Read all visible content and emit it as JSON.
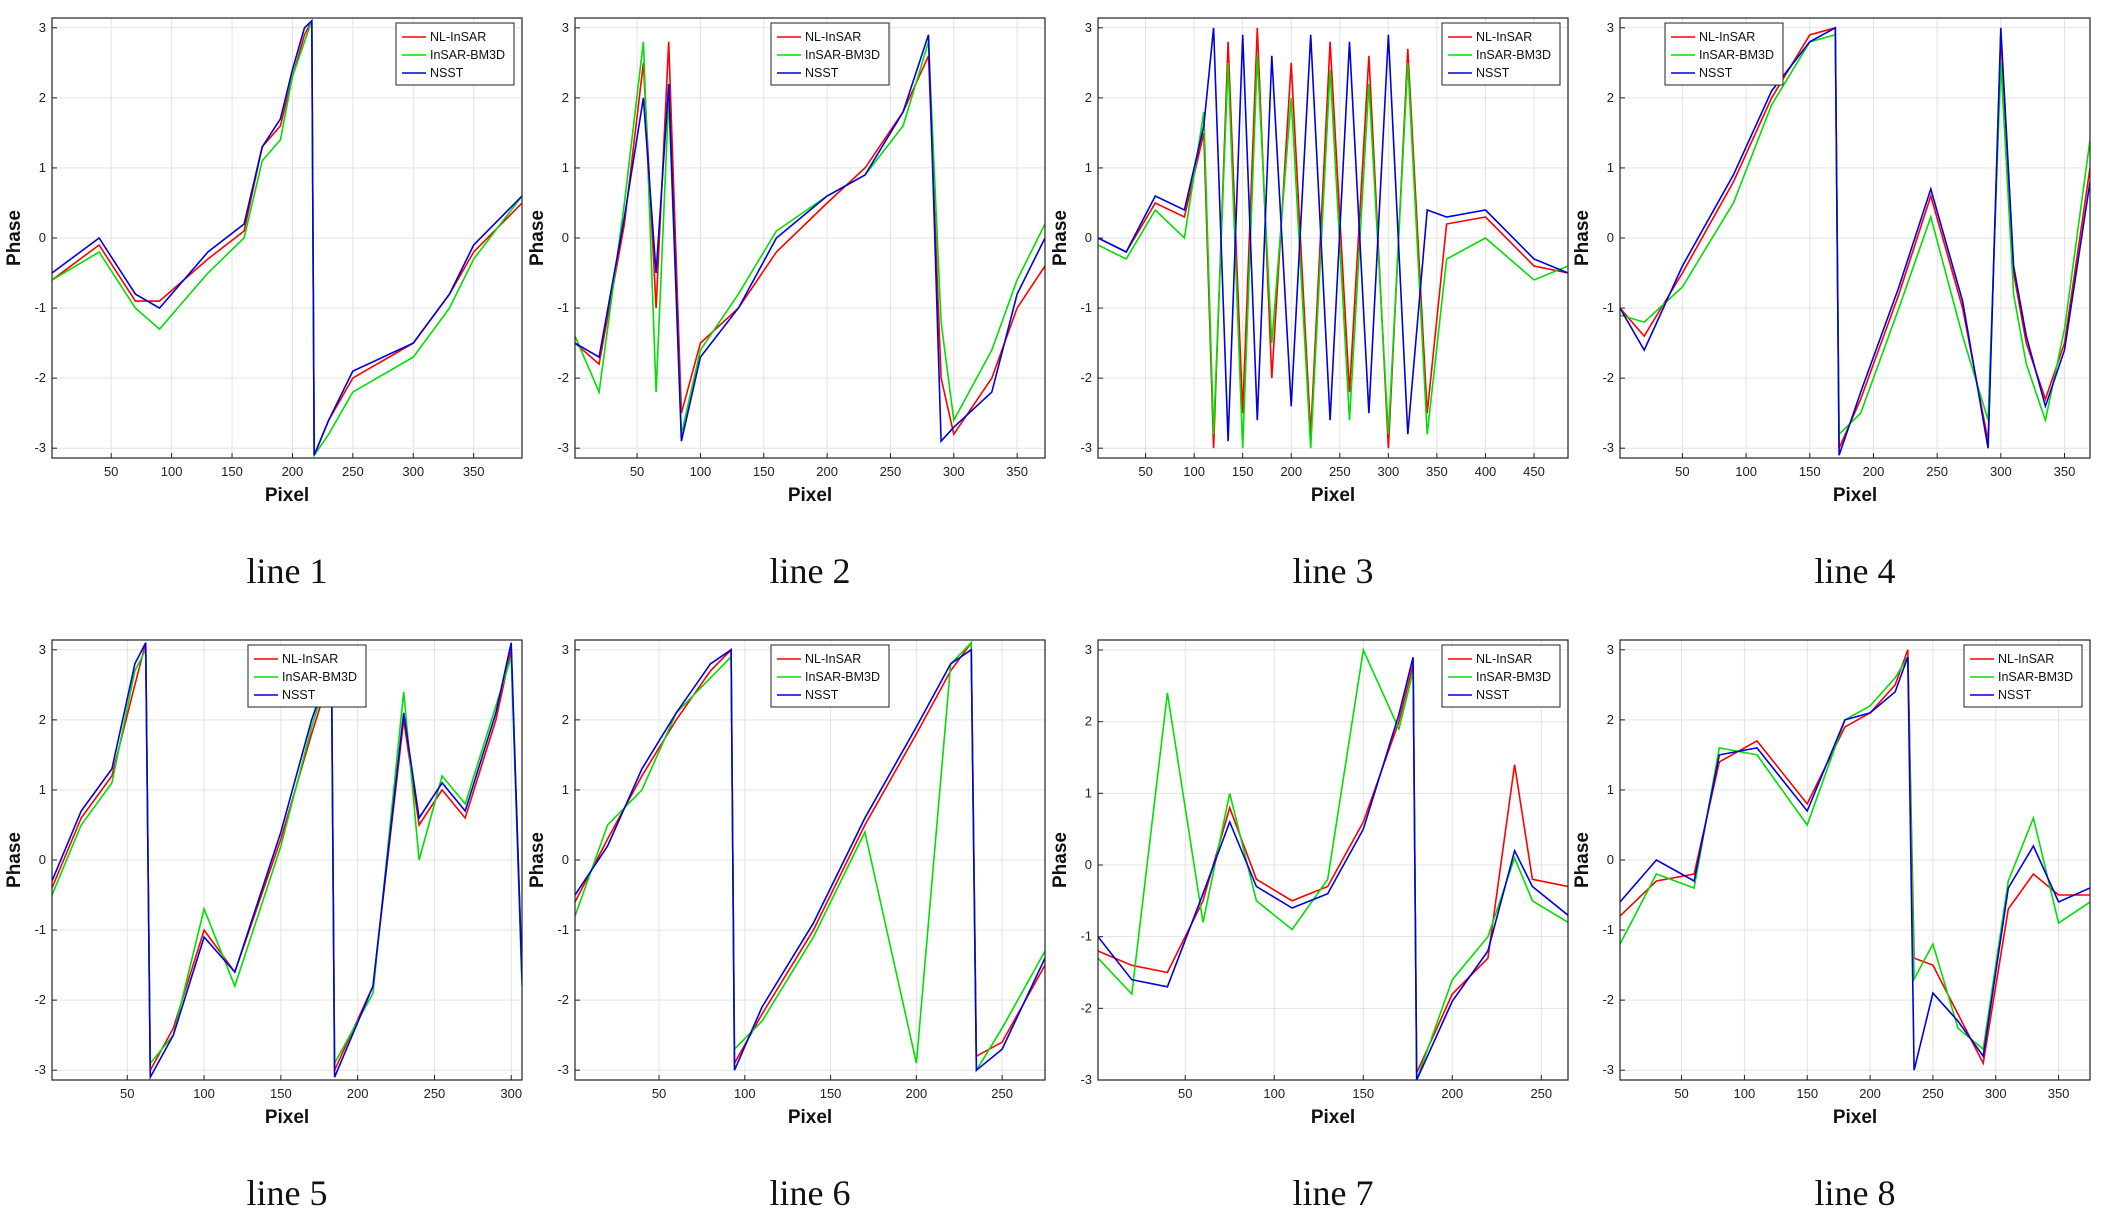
{
  "chart_data": [
    {
      "type": "line",
      "caption": "line 1",
      "xlabel": "Pixel",
      "ylabel": "Phase",
      "xlim": [
        1,
        390
      ],
      "ylim": [
        -3.14,
        3.14
      ],
      "xticks": [
        "50",
        "100",
        "150",
        "200",
        "250",
        "300",
        "350"
      ],
      "xtick_values": [
        50,
        100,
        150,
        200,
        250,
        300,
        350
      ],
      "yticks": [
        "-3",
        "-2",
        "-1",
        "0",
        "1",
        "2",
        "3"
      ],
      "ytick_values": [
        -3,
        -2,
        -1,
        0,
        1,
        2,
        3
      ],
      "legend": "top-right",
      "x": [
        1,
        40,
        70,
        90,
        130,
        160,
        175,
        190,
        200,
        210,
        216,
        218,
        230,
        250,
        300,
        330,
        350,
        390
      ],
      "series": [
        {
          "name": "NL-InSAR",
          "color": "#ff0000",
          "values": [
            -0.6,
            -0.1,
            -0.9,
            -0.9,
            -0.3,
            0.1,
            1.3,
            1.6,
            2.3,
            2.9,
            3.1,
            -3.1,
            -2.6,
            -2.0,
            -1.5,
            -0.8,
            -0.2,
            0.5
          ]
        },
        {
          "name": "InSAR-BM3D",
          "color": "#00e000",
          "values": [
            -0.6,
            -0.2,
            -1.0,
            -1.3,
            -0.5,
            0.0,
            1.1,
            1.4,
            2.3,
            2.8,
            3.1,
            -3.1,
            -2.8,
            -2.2,
            -1.7,
            -1.0,
            -0.3,
            0.6
          ]
        },
        {
          "name": "NSST",
          "color": "#0000e0",
          "values": [
            -0.5,
            0.0,
            -0.8,
            -1.0,
            -0.2,
            0.2,
            1.3,
            1.7,
            2.4,
            3.0,
            3.1,
            -3.1,
            -2.6,
            -1.9,
            -1.5,
            -0.8,
            -0.1,
            0.6
          ]
        }
      ]
    },
    {
      "type": "line",
      "caption": "line 2",
      "xlabel": "Pixel",
      "ylabel": "Phase",
      "xlim": [
        1,
        372
      ],
      "ylim": [
        -3.14,
        3.14
      ],
      "xticks": [
        "50",
        "100",
        "150",
        "200",
        "250",
        "300",
        "350"
      ],
      "xtick_values": [
        50,
        100,
        150,
        200,
        250,
        300,
        350
      ],
      "yticks": [
        "-3",
        "-2",
        "-1",
        "0",
        "1",
        "2",
        "3"
      ],
      "ytick_values": [
        -3,
        -2,
        -1,
        0,
        1,
        2,
        3
      ],
      "legend": "top-center",
      "x": [
        1,
        20,
        40,
        55,
        65,
        75,
        85,
        100,
        130,
        160,
        200,
        230,
        260,
        280,
        290,
        300,
        330,
        350,
        372
      ],
      "series": [
        {
          "name": "NL-InSAR",
          "color": "#ff0000",
          "values": [
            -1.5,
            -1.8,
            0.2,
            2.5,
            -1.0,
            2.8,
            -2.5,
            -1.5,
            -1.0,
            -0.2,
            0.5,
            1.0,
            1.8,
            2.6,
            -2.0,
            -2.8,
            -2.0,
            -1.0,
            -0.4
          ]
        },
        {
          "name": "InSAR-BM3D",
          "color": "#00e000",
          "values": [
            -1.4,
            -2.2,
            0.5,
            2.8,
            -2.2,
            2.0,
            -2.8,
            -1.6,
            -0.8,
            0.1,
            0.6,
            0.9,
            1.6,
            2.8,
            -1.2,
            -2.6,
            -1.6,
            -0.6,
            0.2
          ]
        },
        {
          "name": "NSST",
          "color": "#0000e0",
          "values": [
            -1.5,
            -1.7,
            0.3,
            2.0,
            -0.5,
            2.2,
            -2.9,
            -1.7,
            -1.0,
            0.0,
            0.6,
            0.9,
            1.8,
            2.9,
            -2.9,
            -2.7,
            -2.2,
            -0.8,
            0.0
          ]
        }
      ]
    },
    {
      "type": "line",
      "caption": "line 3",
      "xlabel": "Pixel",
      "ylabel": "Phase",
      "xlim": [
        1,
        485
      ],
      "ylim": [
        -3.14,
        3.14
      ],
      "xticks": [
        "50",
        "100",
        "150",
        "200",
        "250",
        "300",
        "350",
        "400",
        "450"
      ],
      "xtick_values": [
        50,
        100,
        150,
        200,
        250,
        300,
        350,
        400,
        450
      ],
      "yticks": [
        "-3",
        "-2",
        "-1",
        "0",
        "1",
        "2",
        "3"
      ],
      "ytick_values": [
        -3,
        -2,
        -1,
        0,
        1,
        2,
        3
      ],
      "legend": "top-right",
      "x": [
        1,
        30,
        60,
        90,
        110,
        120,
        135,
        150,
        165,
        180,
        200,
        220,
        240,
        260,
        280,
        300,
        320,
        340,
        360,
        400,
        450,
        485
      ],
      "series": [
        {
          "name": "NL-InSAR",
          "color": "#ff0000",
          "values": [
            0.0,
            -0.2,
            0.5,
            0.3,
            1.5,
            -3.0,
            2.8,
            -2.5,
            3.0,
            -2.0,
            2.5,
            -2.8,
            2.8,
            -2.2,
            2.6,
            -3.0,
            2.7,
            -2.5,
            0.2,
            0.3,
            -0.4,
            -0.5
          ]
        },
        {
          "name": "InSAR-BM3D",
          "color": "#00e000",
          "values": [
            -0.1,
            -0.3,
            0.4,
            0.0,
            1.8,
            -2.8,
            2.5,
            -3.0,
            2.6,
            -1.5,
            2.0,
            -3.0,
            2.4,
            -2.6,
            2.2,
            -2.8,
            2.5,
            -2.8,
            -0.3,
            0.0,
            -0.6,
            -0.4
          ]
        },
        {
          "name": "NSST",
          "color": "#0000e0",
          "values": [
            0.0,
            -0.2,
            0.6,
            0.4,
            1.6,
            3.0,
            -2.9,
            2.9,
            -2.6,
            2.6,
            -2.4,
            2.9,
            -2.6,
            2.8,
            -2.5,
            2.9,
            -2.8,
            0.4,
            0.3,
            0.4,
            -0.3,
            -0.5
          ]
        }
      ]
    },
    {
      "type": "line",
      "caption": "line 4",
      "xlabel": "Pixel",
      "ylabel": "Phase",
      "xlim": [
        1,
        370
      ],
      "ylim": [
        -3.14,
        3.14
      ],
      "xticks": [
        "50",
        "100",
        "150",
        "200",
        "250",
        "300",
        "350"
      ],
      "xtick_values": [
        50,
        100,
        150,
        200,
        250,
        300,
        350
      ],
      "yticks": [
        "-3",
        "-2",
        "-1",
        "0",
        "1",
        "2",
        "3"
      ],
      "ytick_values": [
        -3,
        -2,
        -1,
        0,
        1,
        2,
        3
      ],
      "legend": "top-left",
      "x": [
        1,
        20,
        50,
        90,
        120,
        150,
        170,
        173,
        190,
        220,
        245,
        270,
        290,
        300,
        310,
        320,
        335,
        350,
        370
      ],
      "series": [
        {
          "name": "NL-InSAR",
          "color": "#ff0000",
          "values": [
            -1.0,
            -1.4,
            -0.5,
            0.8,
            2.0,
            2.9,
            3.0,
            -3.0,
            -2.3,
            -0.8,
            0.6,
            -1.0,
            -2.9,
            2.9,
            -0.5,
            -1.5,
            -2.3,
            -1.5,
            1.0
          ]
        },
        {
          "name": "InSAR-BM3D",
          "color": "#00e000",
          "values": [
            -1.1,
            -1.2,
            -0.7,
            0.5,
            1.9,
            2.8,
            2.9,
            -2.8,
            -2.5,
            -1.0,
            0.3,
            -1.4,
            -2.6,
            2.5,
            -0.8,
            -1.8,
            -2.6,
            -1.3,
            1.4
          ]
        },
        {
          "name": "NSST",
          "color": "#0000e0",
          "values": [
            -1.0,
            -1.6,
            -0.4,
            0.9,
            2.1,
            2.8,
            3.0,
            -3.1,
            -2.2,
            -0.7,
            0.7,
            -0.9,
            -3.0,
            3.0,
            -0.4,
            -1.4,
            -2.4,
            -1.6,
            0.8
          ]
        }
      ]
    },
    {
      "type": "line",
      "caption": "line 5",
      "xlabel": "Pixel",
      "ylabel": "Phase",
      "xlim": [
        1,
        307
      ],
      "ylim": [
        -3.14,
        3.14
      ],
      "xticks": [
        "50",
        "100",
        "150",
        "200",
        "250",
        "300"
      ],
      "xtick_values": [
        50,
        100,
        150,
        200,
        250,
        300
      ],
      "yticks": [
        "-3",
        "-2",
        "-1",
        "0",
        "1",
        "2",
        "3"
      ],
      "ytick_values": [
        -3,
        -2,
        -1,
        0,
        1,
        2,
        3
      ],
      "legend": "top-center",
      "x": [
        1,
        20,
        40,
        55,
        62,
        65,
        80,
        100,
        120,
        150,
        170,
        183,
        185,
        210,
        230,
        240,
        255,
        270,
        290,
        300,
        307
      ],
      "series": [
        {
          "name": "NL-InSAR",
          "color": "#ff0000",
          "values": [
            -0.4,
            0.6,
            1.2,
            2.5,
            3.1,
            -3.0,
            -2.4,
            -1.0,
            -1.6,
            0.3,
            1.8,
            2.7,
            -3.0,
            -1.8,
            2.0,
            0.5,
            1.0,
            0.6,
            2.0,
            3.0,
            -1.6
          ]
        },
        {
          "name": "InSAR-BM3D",
          "color": "#00e000",
          "values": [
            -0.5,
            0.5,
            1.1,
            2.7,
            3.0,
            -2.9,
            -2.5,
            -0.7,
            -1.8,
            0.2,
            1.9,
            2.8,
            -2.9,
            -1.9,
            2.4,
            0.0,
            1.2,
            0.8,
            2.2,
            2.9,
            -1.8
          ]
        },
        {
          "name": "NSST",
          "color": "#0000e0",
          "values": [
            -0.3,
            0.7,
            1.3,
            2.8,
            3.1,
            -3.1,
            -2.5,
            -1.1,
            -1.6,
            0.4,
            2.0,
            2.8,
            -3.1,
            -1.8,
            2.1,
            0.6,
            1.1,
            0.7,
            2.1,
            3.1,
            -1.7
          ]
        }
      ]
    },
    {
      "type": "line",
      "caption": "line 6",
      "xlabel": "Pixel",
      "ylabel": "Phase",
      "xlim": [
        1,
        275
      ],
      "ylim": [
        -3.14,
        3.14
      ],
      "xticks": [
        "50",
        "100",
        "150",
        "200",
        "250"
      ],
      "xtick_values": [
        50,
        100,
        150,
        200,
        250
      ],
      "yticks": [
        "-3",
        "-2",
        "-1",
        "0",
        "1",
        "2",
        "3"
      ],
      "ytick_values": [
        -3,
        -2,
        -1,
        0,
        1,
        2,
        3
      ],
      "legend": "top-center",
      "x": [
        1,
        20,
        40,
        60,
        80,
        92,
        94,
        110,
        140,
        170,
        200,
        220,
        232,
        235,
        250,
        275
      ],
      "series": [
        {
          "name": "NL-InSAR",
          "color": "#ff0000",
          "values": [
            -0.6,
            0.3,
            1.2,
            2.0,
            2.7,
            3.0,
            -2.9,
            -2.2,
            -1.0,
            0.5,
            1.8,
            2.7,
            3.1,
            -2.8,
            -2.6,
            -1.5
          ]
        },
        {
          "name": "InSAR-BM3D",
          "color": "#00e000",
          "values": [
            -0.8,
            0.5,
            1.0,
            2.1,
            2.6,
            2.9,
            -2.7,
            -2.3,
            -1.1,
            0.4,
            -2.9,
            2.8,
            3.1,
            -3.0,
            -2.4,
            -1.3
          ]
        },
        {
          "name": "NSST",
          "color": "#0000e0",
          "values": [
            -0.5,
            0.2,
            1.3,
            2.1,
            2.8,
            3.0,
            -3.0,
            -2.1,
            -0.9,
            0.6,
            1.9,
            2.8,
            3.0,
            -3.0,
            -2.7,
            -1.4
          ]
        }
      ]
    },
    {
      "type": "line",
      "caption": "line 7",
      "xlabel": "Pixel",
      "ylabel": "Phase",
      "xlim": [
        1,
        265
      ],
      "ylim": [
        -3.0,
        3.14
      ],
      "xticks": [
        "50",
        "100",
        "150",
        "200",
        "250"
      ],
      "xtick_values": [
        50,
        100,
        150,
        200,
        250
      ],
      "yticks": [
        "-3",
        "-2",
        "-1",
        "0",
        "1",
        "2",
        "3"
      ],
      "ytick_values": [
        -3,
        -2,
        -1,
        0,
        1,
        2,
        3
      ],
      "legend": "top-right",
      "x": [
        1,
        20,
        40,
        60,
        75,
        90,
        110,
        130,
        150,
        170,
        178,
        180,
        200,
        220,
        235,
        245,
        265
      ],
      "series": [
        {
          "name": "NL-InSAR",
          "color": "#ff0000",
          "values": [
            -1.2,
            -1.4,
            -1.5,
            -0.5,
            0.8,
            -0.2,
            -0.5,
            -0.3,
            0.6,
            2.0,
            2.8,
            -2.9,
            -1.8,
            -1.3,
            1.4,
            -0.2,
            -0.3
          ]
        },
        {
          "name": "InSAR-BM3D",
          "color": "#00e000",
          "values": [
            -1.3,
            -1.8,
            2.4,
            -0.8,
            1.0,
            -0.5,
            -0.9,
            -0.2,
            3.0,
            1.9,
            2.7,
            -3.0,
            -1.6,
            -1.0,
            0.1,
            -0.5,
            -0.8
          ]
        },
        {
          "name": "NSST",
          "color": "#0000e0",
          "values": [
            -1.0,
            -1.6,
            -1.7,
            -0.4,
            0.6,
            -0.3,
            -0.6,
            -0.4,
            0.5,
            2.1,
            2.9,
            -3.0,
            -1.9,
            -1.2,
            0.2,
            -0.3,
            -0.7
          ]
        }
      ]
    },
    {
      "type": "line",
      "caption": "line 8",
      "xlabel": "Pixel",
      "ylabel": "Phase",
      "xlim": [
        1,
        375
      ],
      "ylim": [
        -3.14,
        3.14
      ],
      "xticks": [
        "50",
        "100",
        "150",
        "200",
        "250",
        "300",
        "350"
      ],
      "xtick_values": [
        50,
        100,
        150,
        200,
        250,
        300,
        350
      ],
      "yticks": [
        "-3",
        "-2",
        "-1",
        "0",
        "1",
        "2",
        "3"
      ],
      "ytick_values": [
        -3,
        -2,
        -1,
        0,
        1,
        2,
        3
      ],
      "legend": "top-right",
      "x": [
        1,
        30,
        60,
        80,
        110,
        150,
        180,
        200,
        220,
        230,
        235,
        250,
        270,
        290,
        310,
        330,
        350,
        375
      ],
      "series": [
        {
          "name": "NL-InSAR",
          "color": "#ff0000",
          "values": [
            -0.8,
            -0.3,
            -0.2,
            1.4,
            1.7,
            0.8,
            1.9,
            2.1,
            2.5,
            3.0,
            -1.4,
            -1.5,
            -2.2,
            -2.9,
            -0.7,
            -0.2,
            -0.5,
            -0.5
          ]
        },
        {
          "name": "InSAR-BM3D",
          "color": "#00e000",
          "values": [
            -1.2,
            -0.2,
            -0.4,
            1.6,
            1.5,
            0.5,
            2.0,
            2.2,
            2.6,
            2.9,
            -1.7,
            -1.2,
            -2.4,
            -2.7,
            -0.3,
            0.6,
            -0.9,
            -0.6
          ]
        },
        {
          "name": "NSST",
          "color": "#0000e0",
          "values": [
            -0.6,
            0.0,
            -0.3,
            1.5,
            1.6,
            0.7,
            2.0,
            2.1,
            2.4,
            2.9,
            -3.0,
            -1.9,
            -2.3,
            -2.8,
            -0.4,
            0.2,
            -0.6,
            -0.4
          ]
        }
      ]
    }
  ]
}
